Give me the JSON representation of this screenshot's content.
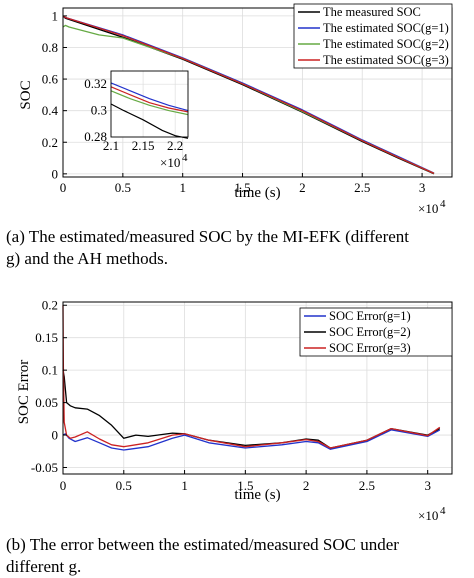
{
  "chart_data": [
    {
      "type": "line",
      "xlabel": "time (s)",
      "ylabel": "SOC",
      "x_exponent_label": "×10",
      "x_exponent_power": "4",
      "xlim": [
        0,
        3.25
      ],
      "ylim": [
        -0.02,
        1.05
      ],
      "xticks": [
        "0",
        "0.5",
        "1",
        "1.5",
        "2",
        "2.5",
        "3"
      ],
      "xtick_values": [
        0,
        0.5,
        1,
        1.5,
        2,
        2.5,
        3
      ],
      "yticks": [
        "0",
        "0.2",
        "0.4",
        "0.6",
        "0.8",
        "1"
      ],
      "ytick_values": [
        0,
        0.2,
        0.4,
        0.6,
        0.8,
        1
      ],
      "grid": true,
      "legend_position": "top-right",
      "x_unit_note": "x in units of 10^4 s",
      "series": [
        {
          "name": "The measured SOC",
          "color": "#000000",
          "x": [
            0,
            0.02,
            0.5,
            1.0,
            1.5,
            2.0,
            2.5,
            2.8,
            3.1
          ],
          "y": [
            1.0,
            0.985,
            0.865,
            0.725,
            0.565,
            0.39,
            0.205,
            0.1,
            0.0
          ]
        },
        {
          "name": "The estimated SOC(g=1)",
          "color": "#2233cc",
          "x": [
            0,
            0.02,
            0.5,
            1.0,
            1.5,
            2.0,
            2.5,
            2.8,
            3.1
          ],
          "y": [
            1.0,
            0.99,
            0.88,
            0.735,
            0.575,
            0.405,
            0.215,
            0.11,
            0.005
          ]
        },
        {
          "name": "The estimated SOC(g=2)",
          "color": "#66aa44",
          "x": [
            0,
            0.02,
            0.05,
            0.3,
            0.5,
            1.0,
            1.5,
            2.0,
            2.5,
            2.8,
            3.1
          ],
          "y": [
            0.93,
            0.94,
            0.93,
            0.88,
            0.86,
            0.73,
            0.57,
            0.395,
            0.21,
            0.105,
            0.003
          ]
        },
        {
          "name": "The estimated SOC(g=3)",
          "color": "#cc2222",
          "x": [
            0,
            0.02,
            0.5,
            1.0,
            1.5,
            2.0,
            2.5,
            2.8,
            3.1
          ],
          "y": [
            1.0,
            0.99,
            0.875,
            0.73,
            0.57,
            0.4,
            0.21,
            0.105,
            0.003
          ]
        }
      ],
      "inset": {
        "xlim": [
          2.1,
          2.22
        ],
        "ylim": [
          0.28,
          0.33
        ],
        "xticks": [
          "2.1",
          "2.15",
          "2.2"
        ],
        "xtick_values": [
          2.1,
          2.15,
          2.2
        ],
        "yticks": [
          "0.28",
          "0.3",
          "0.32"
        ],
        "ytick_values": [
          0.28,
          0.3,
          0.32
        ],
        "x_exponent_label": "×10",
        "x_exponent_power": "4",
        "series": [
          {
            "color": "#000000",
            "x": [
              2.1,
              2.12,
              2.15,
              2.18,
              2.2,
              2.22
            ],
            "y": [
              0.305,
              0.3,
              0.293,
              0.285,
              0.281,
              0.279
            ]
          },
          {
            "color": "#2233cc",
            "x": [
              2.1,
              2.13,
              2.16,
              2.19,
              2.22
            ],
            "y": [
              0.321,
              0.315,
              0.309,
              0.304,
              0.3
            ]
          },
          {
            "color": "#66aa44",
            "x": [
              2.1,
              2.13,
              2.16,
              2.19,
              2.22
            ],
            "y": [
              0.315,
              0.309,
              0.304,
              0.3,
              0.297
            ]
          },
          {
            "color": "#cc2222",
            "x": [
              2.1,
              2.13,
              2.16,
              2.19,
              2.22
            ],
            "y": [
              0.318,
              0.312,
              0.306,
              0.302,
              0.299
            ]
          }
        ]
      }
    },
    {
      "type": "line",
      "xlabel": "time (s)",
      "ylabel": "SOC Error",
      "x_exponent_label": "×10",
      "x_exponent_power": "4",
      "xlim": [
        0,
        3.2
      ],
      "ylim": [
        -0.06,
        0.205
      ],
      "xticks": [
        "0",
        "0.5",
        "1",
        "1.5",
        "2",
        "2.5",
        "3"
      ],
      "xtick_values": [
        0,
        0.5,
        1,
        1.5,
        2,
        2.5,
        3
      ],
      "yticks": [
        "-0.05",
        "0",
        "0.05",
        "0.1",
        "0.15",
        "0.2"
      ],
      "ytick_values": [
        -0.05,
        0,
        0.05,
        0.1,
        0.15,
        0.2
      ],
      "grid": true,
      "legend_position": "top-right",
      "series": [
        {
          "name": "SOC Error(g=1)",
          "color": "#2233cc",
          "x": [
            0,
            0.02,
            0.05,
            0.1,
            0.2,
            0.3,
            0.4,
            0.5,
            0.7,
            0.9,
            1.0,
            1.2,
            1.5,
            1.8,
            2.0,
            2.1,
            2.2,
            2.5,
            2.7,
            3.0,
            3.1
          ],
          "y": [
            0.0,
            0.002,
            -0.005,
            -0.01,
            -0.004,
            -0.012,
            -0.02,
            -0.023,
            -0.018,
            -0.005,
            0.0,
            -0.012,
            -0.02,
            -0.015,
            -0.01,
            -0.012,
            -0.022,
            -0.01,
            0.008,
            -0.002,
            0.008
          ]
        },
        {
          "name": "SOC Error(g=2)",
          "color": "#000000",
          "x": [
            0,
            0.01,
            0.03,
            0.06,
            0.1,
            0.2,
            0.3,
            0.4,
            0.5,
            0.6,
            0.7,
            0.9,
            1.0,
            1.2,
            1.5,
            1.8,
            2.0,
            2.1,
            2.2,
            2.5,
            2.7,
            3.0,
            3.1
          ],
          "y": [
            0.1,
            0.09,
            0.05,
            0.045,
            0.042,
            0.04,
            0.03,
            0.015,
            -0.005,
            0.0,
            -0.002,
            0.003,
            0.002,
            -0.008,
            -0.016,
            -0.012,
            -0.006,
            -0.008,
            -0.02,
            -0.008,
            0.01,
            0.0,
            0.01
          ]
        },
        {
          "name": "SOC Error(g=3)",
          "color": "#cc2222",
          "x": [
            0,
            0.003,
            0.01,
            0.03,
            0.06,
            0.1,
            0.2,
            0.3,
            0.4,
            0.5,
            0.7,
            0.9,
            1.0,
            1.2,
            1.5,
            1.8,
            2.0,
            2.1,
            2.2,
            2.5,
            2.7,
            3.0,
            3.1
          ],
          "y": [
            0.2,
            0.1,
            0.02,
            0.0,
            -0.005,
            -0.003,
            0.005,
            -0.006,
            -0.015,
            -0.018,
            -0.012,
            0.0,
            0.002,
            -0.008,
            -0.018,
            -0.012,
            -0.007,
            -0.01,
            -0.02,
            -0.008,
            0.01,
            -0.001,
            0.012
          ]
        }
      ]
    }
  ],
  "captions": {
    "a_line1": "(a) The estimated/measured SOC by the MI-EFK (different",
    "a_line2": "g) and the AH methods.",
    "b_line1": "(b) The error between the estimated/measured SOC under",
    "b_line2": "different g."
  }
}
